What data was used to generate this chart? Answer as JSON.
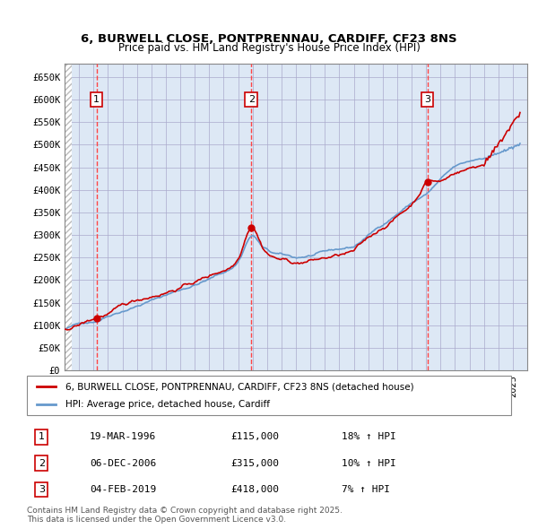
{
  "title_line1": "6, BURWELL CLOSE, PONTPRENNAU, CARDIFF, CF23 8NS",
  "title_line2": "Price paid vs. HM Land Registry's House Price Index (HPI)",
  "ylabel": "",
  "ylim": [
    0,
    680000
  ],
  "yticks": [
    0,
    50000,
    100000,
    150000,
    200000,
    250000,
    300000,
    350000,
    400000,
    450000,
    500000,
    550000,
    600000,
    650000
  ],
  "ytick_labels": [
    "£0",
    "£50K",
    "£100K",
    "£150K",
    "£200K",
    "£250K",
    "£300K",
    "£350K",
    "£400K",
    "£450K",
    "£500K",
    "£550K",
    "£600K",
    "£650K"
  ],
  "xlim_start": 1994.0,
  "xlim_end": 2026.0,
  "sale_dates": [
    1996.21,
    2006.92,
    2019.09
  ],
  "sale_prices": [
    115000,
    315000,
    418000
  ],
  "sale_labels": [
    "1",
    "2",
    "3"
  ],
  "sale_box_color": "#cc0000",
  "hpi_color": "#6699cc",
  "price_color": "#cc0000",
  "grid_color": "#aaaacc",
  "bg_color": "#dde8f5",
  "legend_line1": "6, BURWELL CLOSE, PONTPRENNAU, CARDIFF, CF23 8NS (detached house)",
  "legend_line2": "HPI: Average price, detached house, Cardiff",
  "table_entries": [
    {
      "num": "1",
      "date": "19-MAR-1996",
      "price": "£115,000",
      "hpi": "18% ↑ HPI"
    },
    {
      "num": "2",
      "date": "06-DEC-2006",
      "price": "£315,000",
      "hpi": "10% ↑ HPI"
    },
    {
      "num": "3",
      "date": "04-FEB-2019",
      "price": "£418,000",
      "hpi": "7% ↑ HPI"
    }
  ],
  "footer": "Contains HM Land Registry data © Crown copyright and database right 2025.\nThis data is licensed under the Open Government Licence v3.0.",
  "vline_color": "#ff4444",
  "vline_dates": [
    1996.21,
    2006.92,
    2019.09
  ]
}
